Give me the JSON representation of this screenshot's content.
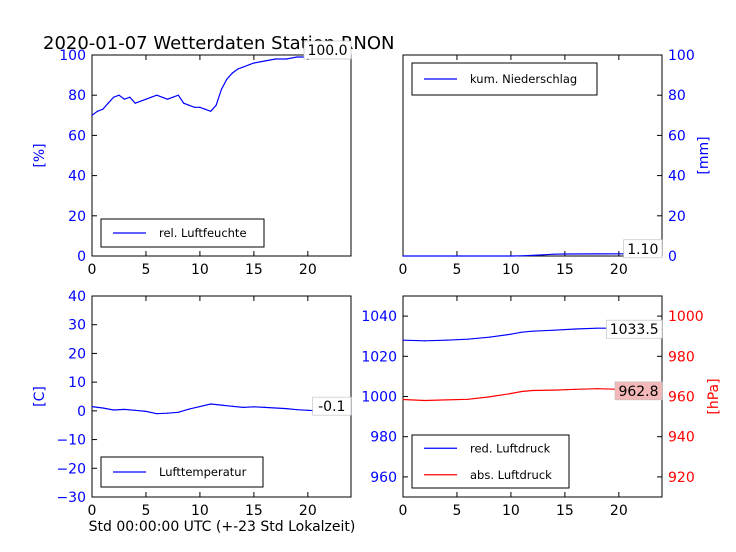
{
  "title": "2020-01-07 Wetterdaten Station RNON",
  "footer_xlabel": "Std 00:00:00 UTC (+-23 Std Lokalzeit)",
  "colors": {
    "blue": "#0000ff",
    "red": "#ff0000",
    "black": "#000000",
    "box_bg": "#ffffff",
    "red_box_bg": "#f4b8b8"
  },
  "chart_data": [
    {
      "id": "humidity",
      "type": "line",
      "ylabel": "[%]",
      "ylabel_side": "left",
      "tick_color": "blue",
      "xlim": [
        0,
        24
      ],
      "ylim": [
        0,
        100
      ],
      "xticks": [
        "0",
        "5",
        "10",
        "15",
        "20"
      ],
      "yticks": [
        "0",
        "20",
        "40",
        "60",
        "80",
        "100"
      ],
      "legend_placement": "lower-left",
      "last_value_label": "100.0",
      "series": [
        {
          "name": "rel. Luftfeuchte",
          "color": "blue",
          "x": [
            0,
            0.5,
            1,
            1.5,
            2,
            2.5,
            3,
            3.5,
            4,
            4.5,
            5,
            5.5,
            6,
            6.5,
            7,
            7.5,
            8,
            8.5,
            9,
            9.5,
            10,
            10.5,
            11,
            11.5,
            12,
            12.5,
            13,
            13.5,
            14,
            15,
            16,
            17,
            18,
            19,
            20,
            21,
            22,
            23,
            24
          ],
          "y": [
            70,
            72,
            73,
            76,
            79,
            80,
            78,
            79,
            76,
            77,
            78,
            79,
            80,
            79,
            78,
            79,
            80,
            76,
            75,
            74,
            74,
            73,
            72,
            75,
            83,
            88,
            91,
            93,
            94,
            96,
            97,
            98,
            98,
            99,
            99,
            99,
            100,
            100,
            100
          ]
        }
      ]
    },
    {
      "id": "precip",
      "type": "line",
      "ylabel": "[mm]",
      "ylabel_side": "right",
      "tick_color": "blue",
      "xlim": [
        0,
        24
      ],
      "ylim": [
        0,
        100
      ],
      "xticks": [
        "0",
        "5",
        "10",
        "15",
        "20"
      ],
      "yticks": [
        "0",
        "20",
        "40",
        "60",
        "80",
        "100"
      ],
      "legend_placement": "top-left",
      "last_value_label": "1.10",
      "series": [
        {
          "name": "kum. Niederschlag",
          "color": "blue",
          "x": [
            0,
            10,
            11,
            12,
            13,
            14,
            15,
            18,
            21,
            24
          ],
          "y": [
            0,
            0,
            0.1,
            0.3,
            0.6,
            0.9,
            1.0,
            1.05,
            1.1,
            1.1
          ]
        }
      ]
    },
    {
      "id": "temperature",
      "type": "line",
      "ylabel": "[C]",
      "ylabel_side": "left",
      "tick_color": "blue",
      "xlim": [
        0,
        24
      ],
      "ylim": [
        -30,
        40
      ],
      "xticks": [
        "0",
        "5",
        "10",
        "15",
        "20"
      ],
      "yticks": [
        "−30",
        "−20",
        "−10",
        "0",
        "10",
        "20",
        "30",
        "40"
      ],
      "legend_placement": "lower-left",
      "last_value_label": "-0.1",
      "series": [
        {
          "name": "Lufttemperatur",
          "color": "blue",
          "x": [
            0,
            1,
            2,
            3,
            4,
            5,
            6,
            7,
            8,
            9,
            10,
            11,
            12,
            13,
            14,
            15,
            16,
            17,
            18,
            19,
            20,
            21,
            22,
            23,
            24
          ],
          "y": [
            1.5,
            1.0,
            0.3,
            0.5,
            0.2,
            -0.2,
            -1.0,
            -0.8,
            -0.5,
            0.6,
            1.5,
            2.4,
            2.0,
            1.6,
            1.2,
            1.4,
            1.2,
            1.0,
            0.8,
            0.4,
            0.2,
            0.0,
            -0.1,
            -0.1,
            -0.1
          ]
        }
      ]
    },
    {
      "id": "pressure",
      "type": "line",
      "xlim": [
        0,
        24
      ],
      "xticks": [
        "0",
        "5",
        "10",
        "15",
        "20"
      ],
      "left_axis": {
        "ylim": [
          950,
          1050
        ],
        "yticks": [
          "960",
          "980",
          "1000",
          "1020",
          "1040"
        ],
        "tick_color": "blue"
      },
      "right_axis": {
        "ylabel": "[hPa]",
        "ylim": [
          910,
          1010
        ],
        "yticks": [
          "920",
          "940",
          "960",
          "980",
          "1000"
        ],
        "tick_color": "red"
      },
      "legend_placement": "lower-left",
      "series": [
        {
          "name": "red. Luftdruck",
          "color": "blue",
          "axis": "left",
          "last_value_label": "1033.5",
          "x": [
            0,
            2,
            4,
            6,
            8,
            10,
            11,
            12,
            14,
            16,
            18,
            20,
            22,
            24
          ],
          "y": [
            1028,
            1027.7,
            1028,
            1028.5,
            1029.5,
            1031,
            1032,
            1032.5,
            1033,
            1033.6,
            1034,
            1034,
            1033.8,
            1033.5
          ]
        },
        {
          "name": "abs. Luftdruck",
          "color": "red",
          "axis": "right",
          "last_value_label": "962.8",
          "x": [
            0,
            2,
            4,
            6,
            8,
            10,
            11,
            12,
            14,
            16,
            18,
            20,
            22,
            24
          ],
          "y": [
            958.5,
            958.0,
            958.3,
            958.6,
            959.8,
            961.5,
            962.5,
            963.0,
            963.2,
            963.6,
            963.9,
            963.6,
            963.2,
            962.8
          ]
        }
      ]
    }
  ]
}
